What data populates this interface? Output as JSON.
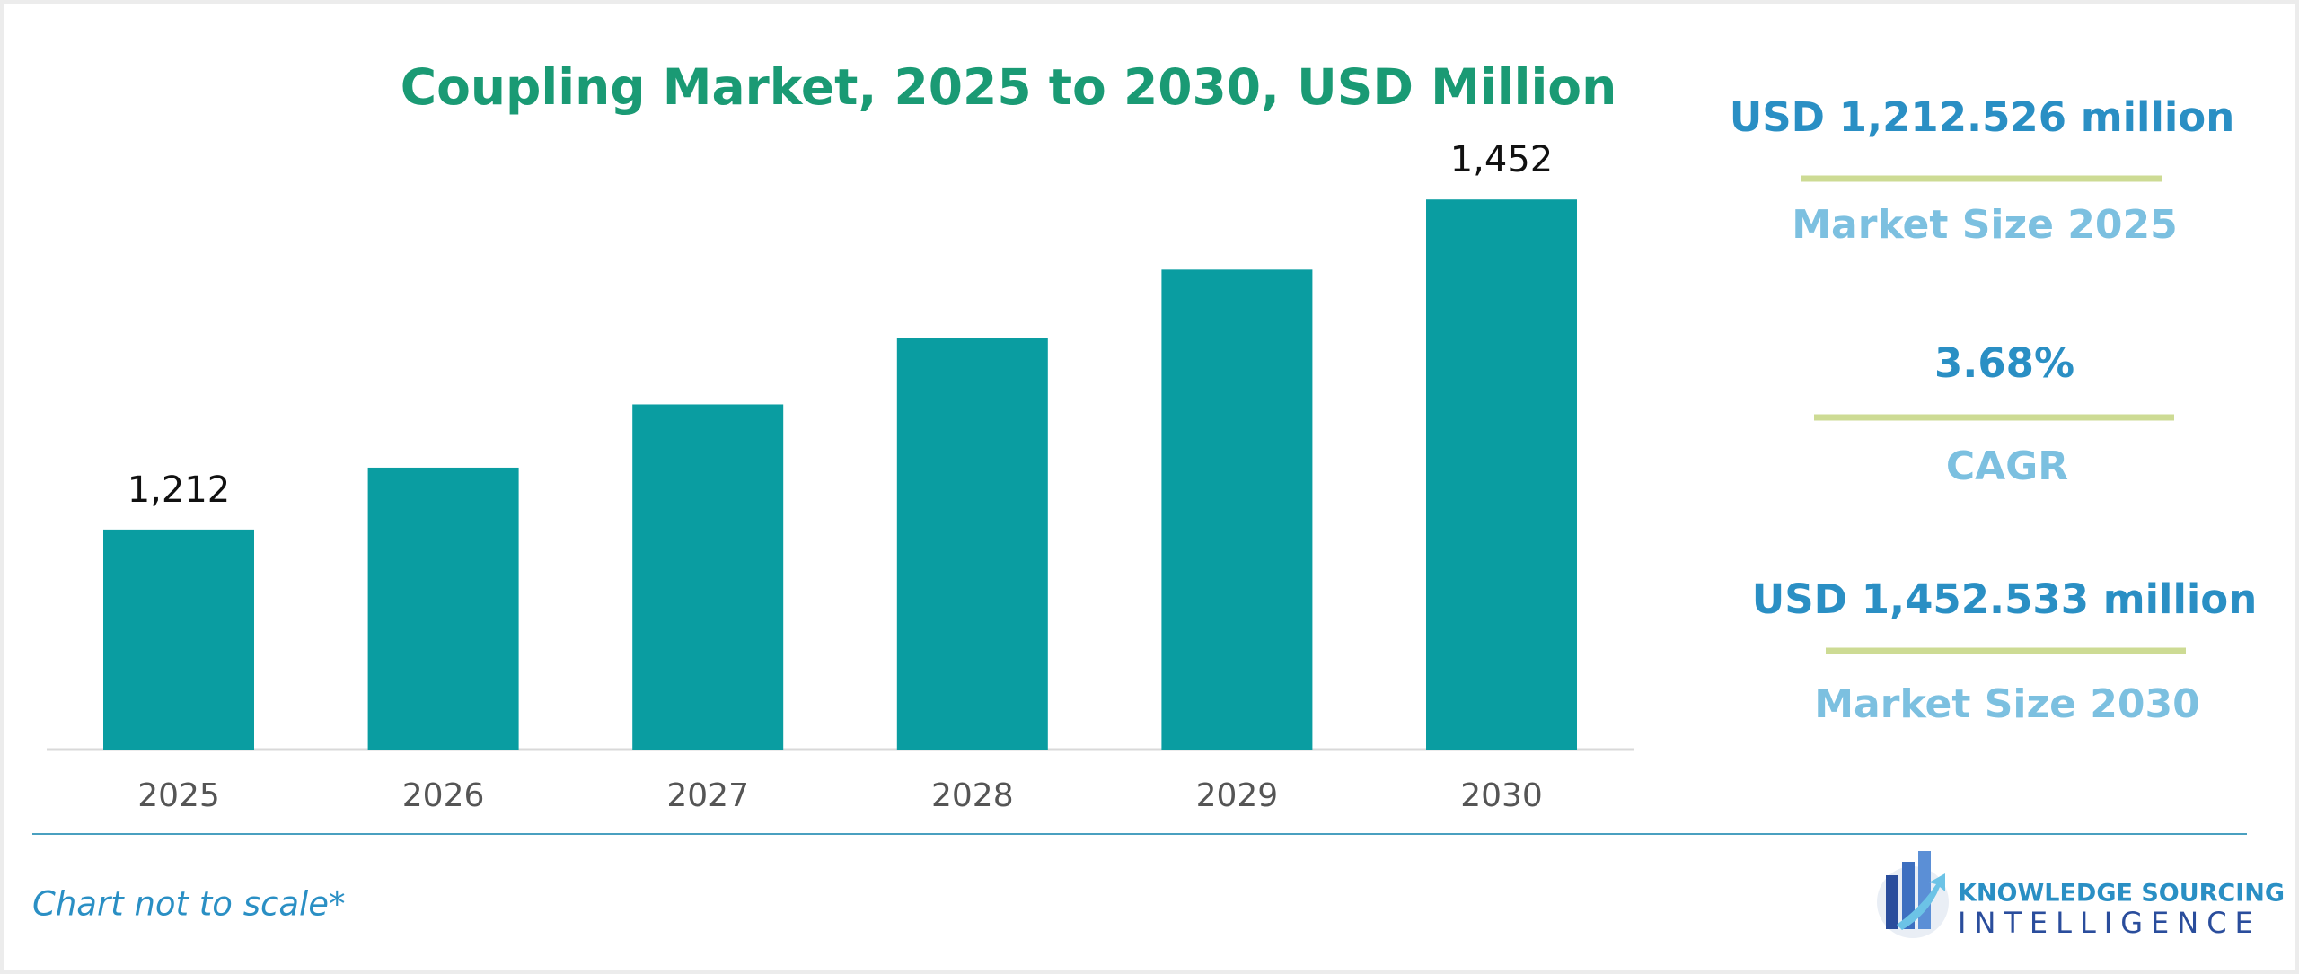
{
  "chart_data": {
    "type": "bar",
    "title": "Coupling Market, 2025 to 2030, USD Million",
    "categories": [
      "2025",
      "2026",
      "2027",
      "2028",
      "2029",
      "2030"
    ],
    "values": [
      1212,
      1257,
      1303,
      1351,
      1401,
      1452
    ],
    "value_labels": [
      "1,212",
      null,
      null,
      null,
      null,
      "1,452"
    ],
    "color": "#0a9da1",
    "ylim": [
      1052,
      1490
    ]
  },
  "stats": [
    {
      "value": "USD 1,212.526 million",
      "label": "Market Size 2025"
    },
    {
      "value": "3.68%",
      "label": "CAGR"
    },
    {
      "value": "USD 1,452.533 million",
      "label": "Market Size 2030"
    }
  ],
  "footnote": "Chart not to scale*",
  "logo": {
    "line1": "KNOWLEDGE SOURCING",
    "line2": "INTELLIGENCE"
  }
}
